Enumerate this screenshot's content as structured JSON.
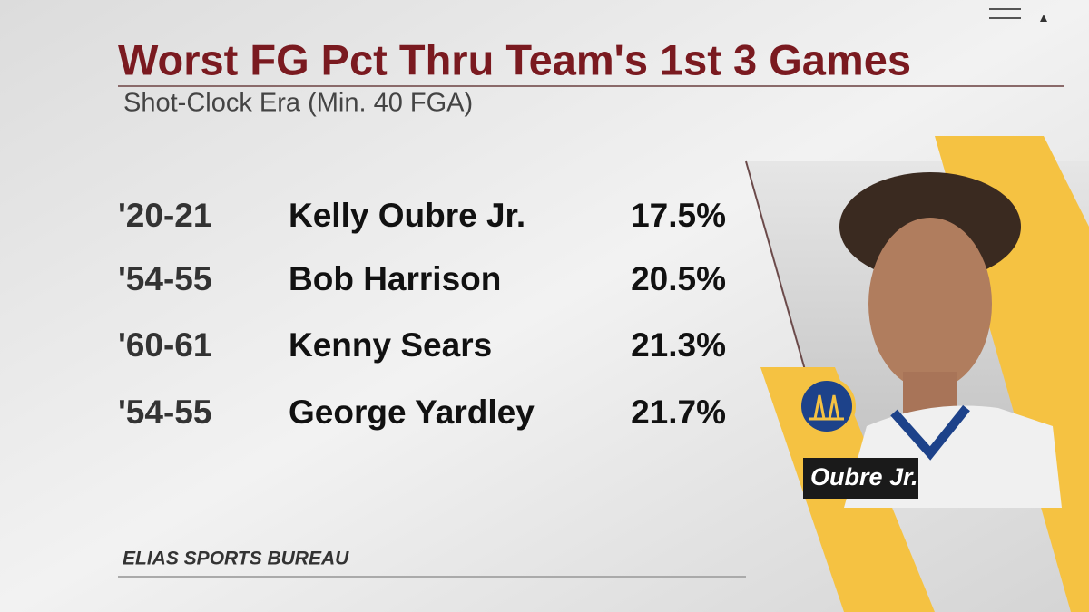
{
  "header": {
    "title": "Worst FG Pct Thru Team's 1st 3 Games",
    "subtitle": "Shot-Clock Era (Min. 40 FGA)"
  },
  "table": {
    "rows": [
      [
        "'20-21",
        "Kelly Oubre Jr.",
        "17.5%"
      ],
      [
        "'54-55",
        "Bob Harrison",
        "20.5%"
      ],
      [
        "'60-61",
        "Kenny Sears",
        "21.3%"
      ],
      [
        "'54-55",
        "George Yardley",
        "21.7%"
      ]
    ]
  },
  "player_caption": "Oubre Jr.",
  "source": "ELIAS SPORTS BUREAU"
}
